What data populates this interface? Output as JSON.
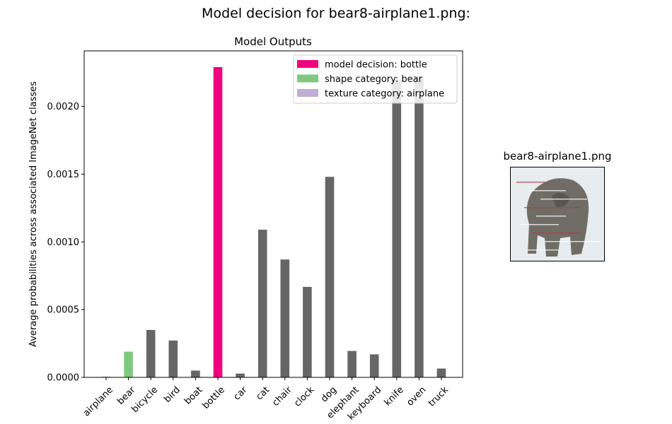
{
  "suptitle": "Model decision for bear8-airplane1.png:",
  "image_panel": {
    "title": "bear8-airplane1.png",
    "colors": {
      "background": "#e8ecef",
      "subject": "#6f6d66",
      "subject_dark": "#4a4843",
      "streak": "#b83a3a"
    }
  },
  "chart_data": {
    "type": "bar",
    "title": "Model Outputs",
    "xlabel": "",
    "ylabel": "Average probabilities across associated ImageNet classes",
    "categories": [
      "airplane",
      "bear",
      "bicycle",
      "bird",
      "boat",
      "bottle",
      "car",
      "cat",
      "chair",
      "clock",
      "dog",
      "elephant",
      "keyboard",
      "knife",
      "oven",
      "truck"
    ],
    "values": [
      4e-06,
      0.00019,
      0.00035,
      0.000272,
      5e-05,
      0.00229,
      2.8e-05,
      0.00109,
      0.00087,
      0.000668,
      0.00148,
      0.000195,
      0.00017,
      0.0022,
      0.00222,
      6.5e-05
    ],
    "bar_colors": [
      "#666666",
      "#7fc97f",
      "#666666",
      "#666666",
      "#666666",
      "#f0027f",
      "#666666",
      "#666666",
      "#666666",
      "#666666",
      "#666666",
      "#666666",
      "#666666",
      "#666666",
      "#666666",
      "#666666"
    ],
    "ylim": [
      0,
      0.00241
    ],
    "yticks": [
      {
        "value": 0,
        "label": "0.0000"
      },
      {
        "value": 0.0005,
        "label": "0.0005"
      },
      {
        "value": 0.001,
        "label": "0.0010"
      },
      {
        "value": 0.0015,
        "label": "0.0015"
      },
      {
        "value": 0.002,
        "label": "0.0020"
      }
    ],
    "grid": false,
    "legend_position": "top-right",
    "legend": [
      {
        "label": "model decision: bottle",
        "color": "#f0027f"
      },
      {
        "label": "shape category: bear",
        "color": "#7fc97f"
      },
      {
        "label": "texture category: airplane",
        "color": "#beaed4"
      }
    ]
  }
}
